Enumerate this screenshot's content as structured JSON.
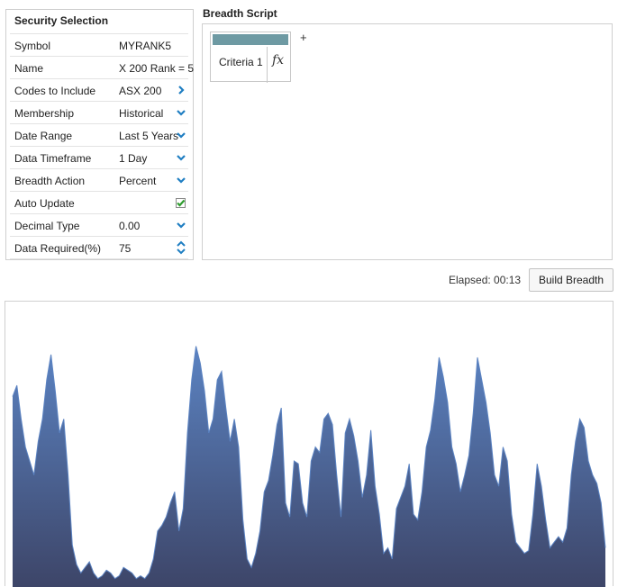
{
  "security_selection": {
    "title": "Security Selection",
    "rows": [
      {
        "label": "Symbol",
        "value": "MYRANK5",
        "icon": "none"
      },
      {
        "label": "Name",
        "value": "X 200 Rank = 5",
        "icon": "none"
      },
      {
        "label": "Codes to Include",
        "value": "ASX 200",
        "icon": "chevron-right-icon"
      },
      {
        "label": "Membership",
        "value": "Historical",
        "icon": "chevron-down-icon"
      },
      {
        "label": "Date Range",
        "value": "Last 5 Years",
        "icon": "chevron-down-icon"
      },
      {
        "label": "Data Timeframe",
        "value": "1 Day",
        "icon": "chevron-down-icon"
      },
      {
        "label": "Breadth Action",
        "value": "Percent",
        "icon": "chevron-down-icon"
      },
      {
        "label": "Auto Update",
        "value": "",
        "icon": "checkbox-checked-icon"
      },
      {
        "label": "Decimal Type",
        "value": "0.00",
        "icon": "chevron-down-icon"
      },
      {
        "label": "Data Required(%)",
        "value": "75",
        "icon": "spinner-icon"
      }
    ]
  },
  "breadth_script": {
    "title": "Breadth Script",
    "criteria": [
      {
        "label": "Criteria 1",
        "fx_label": "fx"
      }
    ],
    "add_label": "+"
  },
  "actions": {
    "elapsed_text": "Elapsed: 00:13",
    "build_label": "Build Breadth"
  },
  "colors": {
    "accent": "#1f7ec2",
    "criteria_bar": "#6e9aa3",
    "area_top": "#5b83c2",
    "area_bottom": "#3d4568",
    "checkbox_tick": "#2e9d2e"
  },
  "chart_data": {
    "type": "area",
    "title": "",
    "xlabel": "",
    "ylabel": "",
    "grid": false,
    "ylim": [
      0,
      100
    ],
    "values": [
      68,
      72,
      60,
      50,
      45,
      40,
      52,
      60,
      74,
      83,
      70,
      55,
      60,
      40,
      15,
      8,
      5,
      7,
      9,
      5,
      3,
      4,
      6,
      5,
      3,
      4,
      7,
      6,
      5,
      3,
      4,
      3,
      5,
      10,
      20,
      22,
      25,
      30,
      34,
      20,
      28,
      55,
      74,
      86,
      80,
      70,
      55,
      60,
      74,
      77,
      64,
      52,
      60,
      50,
      24,
      10,
      7,
      12,
      20,
      34,
      38,
      47,
      58,
      64,
      30,
      25,
      45,
      44,
      30,
      25,
      45,
      50,
      48,
      60,
      62,
      58,
      40,
      25,
      55,
      60,
      54,
      45,
      32,
      40,
      56,
      36,
      26,
      12,
      14,
      10,
      28,
      32,
      36,
      44,
      26,
      24,
      34,
      50,
      56,
      67,
      82,
      75,
      66,
      50,
      44,
      34,
      40,
      47,
      62,
      82,
      74,
      66,
      55,
      40,
      36,
      50,
      45,
      26,
      16,
      14,
      12,
      13,
      26,
      44,
      36,
      24,
      14,
      16,
      18,
      16,
      21,
      40,
      52,
      60,
      57,
      45,
      40,
      37,
      30,
      14
    ]
  }
}
